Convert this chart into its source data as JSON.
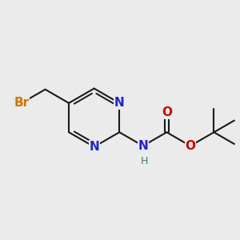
{
  "bg_color": "#ebebeb",
  "bond_color": "#1a1a1a",
  "N_color": "#2222cc",
  "O_color": "#cc0000",
  "Br_color": "#cc7700",
  "H_color": "#447777",
  "line_width": 1.5,
  "font_size_atom": 11,
  "font_size_H": 9,
  "figsize": [
    3.0,
    3.0
  ],
  "dpi": 100,
  "xlim": [
    -2.3,
    2.8
  ],
  "ylim": [
    -1.8,
    2.0
  ]
}
